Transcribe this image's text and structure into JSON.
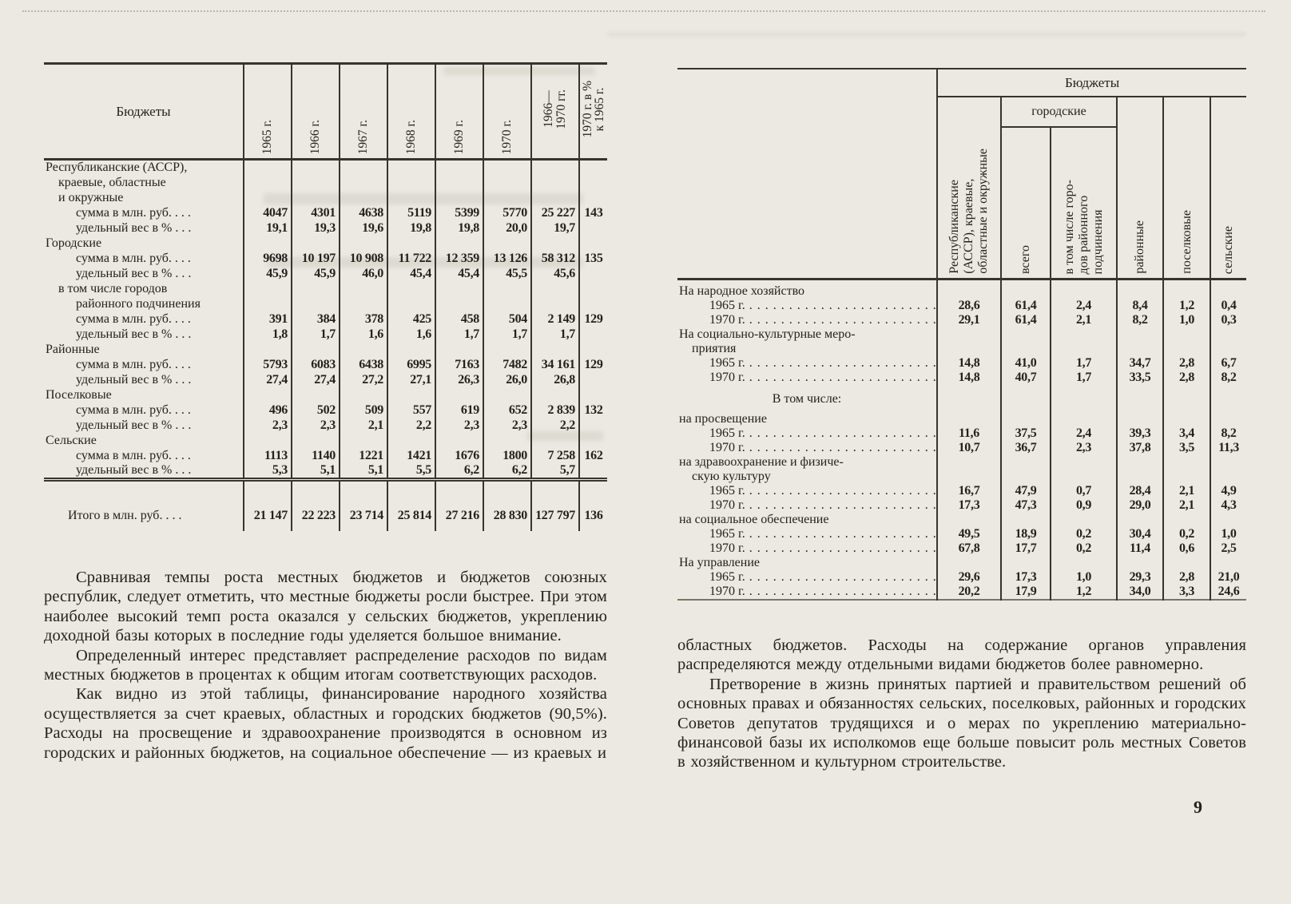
{
  "page_number": "9",
  "dot_leader": ". . . . . . . . . . . . . . . . . . . . . . . . . . . . . . . . . . . .",
  "left_table": {
    "header": {
      "stub": "Бюджеты",
      "years": [
        "1965 г.",
        "1966 г.",
        "1967 г.",
        "1968 г.",
        "1969 г.",
        "1970 г."
      ],
      "period": [
        "1966—",
        "1970 гг."
      ],
      "ratio": [
        "1970 г. в %",
        "к 1965 г."
      ]
    },
    "rows": [
      {
        "label": "Республиканские (АССР),",
        "indent": 0
      },
      {
        "label": "краевые, областные",
        "indent": 1
      },
      {
        "label": "и окружные",
        "indent": 1
      },
      {
        "label": "сумма в млн. руб. . . .",
        "indent": 2,
        "values": [
          "4047",
          "4301",
          "4638",
          "5119",
          "5399",
          "5770",
          "25 227",
          "143"
        ]
      },
      {
        "label": "удельный вес в % . . .",
        "indent": 2,
        "values": [
          "19,1",
          "19,3",
          "19,6",
          "19,8",
          "19,8",
          "20,0",
          "19,7",
          ""
        ]
      },
      {
        "label": "Городские",
        "indent": 0
      },
      {
        "label": "сумма в млн. руб. . . .",
        "indent": 2,
        "values": [
          "9698",
          "10 197",
          "10 908",
          "11 722",
          "12 359",
          "13 126",
          "58 312",
          "135"
        ]
      },
      {
        "label": "удельный вес в % . . .",
        "indent": 2,
        "values": [
          "45,9",
          "45,9",
          "46,0",
          "45,4",
          "45,4",
          "45,5",
          "45,6",
          ""
        ]
      },
      {
        "label": "в том числе городов",
        "indent": 1
      },
      {
        "label": "районного подчинения",
        "indent": 2
      },
      {
        "label": "сумма в млн. руб. . . .",
        "indent": 2,
        "values": [
          "391",
          "384",
          "378",
          "425",
          "458",
          "504",
          "2 149",
          "129"
        ]
      },
      {
        "label": "удельный вес в % . . .",
        "indent": 2,
        "values": [
          "1,8",
          "1,7",
          "1,6",
          "1,6",
          "1,7",
          "1,7",
          "1,7",
          ""
        ]
      },
      {
        "label": "Районные",
        "indent": 0
      },
      {
        "label": "сумма в млн. руб. . . .",
        "indent": 2,
        "values": [
          "5793",
          "6083",
          "6438",
          "6995",
          "7163",
          "7482",
          "34 161",
          "129"
        ]
      },
      {
        "label": "удельный вес в % . . .",
        "indent": 2,
        "values": [
          "27,4",
          "27,4",
          "27,2",
          "27,1",
          "26,3",
          "26,0",
          "26,8",
          ""
        ]
      },
      {
        "label": "Поселковые",
        "indent": 0
      },
      {
        "label": "сумма в млн. руб. . . .",
        "indent": 2,
        "values": [
          "496",
          "502",
          "509",
          "557",
          "619",
          "652",
          "2 839",
          "132"
        ]
      },
      {
        "label": "удельный вес в % . . .",
        "indent": 2,
        "values": [
          "2,3",
          "2,3",
          "2,1",
          "2,2",
          "2,3",
          "2,3",
          "2,2",
          ""
        ]
      },
      {
        "label": "Сельские",
        "indent": 0
      },
      {
        "label": "сумма в млн. руб. . . .",
        "indent": 2,
        "values": [
          "1113",
          "1140",
          "1221",
          "1421",
          "1676",
          "1800",
          "7 258",
          "162"
        ]
      },
      {
        "label": "удельный вес в % . . .",
        "indent": 2,
        "values": [
          "5,3",
          "5,1",
          "5,1",
          "5,5",
          "6,2",
          "6,2",
          "5,7",
          ""
        ]
      }
    ],
    "total": {
      "label": "Итого в млн. руб. . . .",
      "values": [
        "21 147",
        "22 223",
        "23 714",
        "25 814",
        "27 216",
        "28 830",
        "127 797",
        "136"
      ]
    }
  },
  "right_table": {
    "title": "Бюджеты",
    "city_group": "городские",
    "cols": {
      "republican": [
        "Республиканские",
        "(АССР), краевые,",
        "областные и окружные"
      ],
      "city_total": [
        "всего"
      ],
      "city_sub": [
        "в том числе горо-",
        "дов районного",
        "подчинения"
      ],
      "district": [
        "районные"
      ],
      "settlement": [
        "поселковые"
      ],
      "rural": [
        "сельские"
      ]
    },
    "rows": [
      {
        "label": "На народное хозяйство",
        "indent": 0
      },
      {
        "label": "1965 г.",
        "dots": true,
        "indent": 2,
        "values": [
          "28,6",
          "61,4",
          "2,4",
          "8,4",
          "1,2",
          "0,4"
        ]
      },
      {
        "label": "1970 г.",
        "dots": true,
        "indent": 2,
        "values": [
          "29,1",
          "61,4",
          "2,1",
          "8,2",
          "1,0",
          "0,3"
        ]
      },
      {
        "label": "На социально-культурные  меро-",
        "indent": 0
      },
      {
        "label": "приятия",
        "indent": 1
      },
      {
        "label": "1965 г.",
        "dots": true,
        "indent": 2,
        "values": [
          "14,8",
          "41,0",
          "1,7",
          "34,7",
          "2,8",
          "6,7"
        ]
      },
      {
        "label": "1970 г.",
        "dots": true,
        "indent": 2,
        "values": [
          "14,8",
          "40,7",
          "1,7",
          "33,5",
          "2,8",
          "8,2"
        ]
      },
      {
        "label": "В том числе:",
        "center": true
      },
      {
        "label": "на просвещение",
        "indent": 0
      },
      {
        "label": "1965 г.",
        "dots": true,
        "indent": 2,
        "values": [
          "11,6",
          "37,5",
          "2,4",
          "39,3",
          "3,4",
          "8,2"
        ]
      },
      {
        "label": "1970 г.",
        "dots": true,
        "indent": 2,
        "values": [
          "10,7",
          "36,7",
          "2,3",
          "37,8",
          "3,5",
          "11,3"
        ]
      },
      {
        "label": "на здравоохранение и физиче-",
        "indent": 0
      },
      {
        "label": "скую культуру",
        "indent": 1
      },
      {
        "label": "1965 г.",
        "dots": true,
        "indent": 2,
        "values": [
          "16,7",
          "47,9",
          "0,7",
          "28,4",
          "2,1",
          "4,9"
        ]
      },
      {
        "label": "1970 г.",
        "dots": true,
        "indent": 2,
        "values": [
          "17,3",
          "47,3",
          "0,9",
          "29,0",
          "2,1",
          "4,3"
        ]
      },
      {
        "label": "на социальное обеспечение",
        "indent": 0
      },
      {
        "label": "1965 г.",
        "dots": true,
        "indent": 2,
        "values": [
          "49,5",
          "18,9",
          "0,2",
          "30,4",
          "0,2",
          "1,0"
        ]
      },
      {
        "label": "1970 г.",
        "dots": true,
        "indent": 2,
        "values": [
          "67,8",
          "17,7",
          "0,2",
          "11,4",
          "0,6",
          "2,5"
        ]
      },
      {
        "label": "На управление",
        "indent": 0
      },
      {
        "label": "1965 г.",
        "dots": true,
        "indent": 2,
        "values": [
          "29,6",
          "17,3",
          "1,0",
          "29,3",
          "2,8",
          "21,0"
        ]
      },
      {
        "label": "1970 г.",
        "dots": true,
        "indent": 2,
        "values": [
          "20,2",
          "17,9",
          "1,2",
          "34,0",
          "3,3",
          "24,6"
        ]
      }
    ]
  },
  "left_column_text": [
    "Сравнивая темпы роста местных бюджетов и бюджетов союзных республик, следует отметить, что местные бюджеты росли быстрее. При этом наиболее высокий темп роста оказался у сельских бюджетов, укреплению доходной базы которых в последние годы уделяется большое внимание.",
    "Определенный интерес представляет распределение расходов по видам местных бюджетов в процентах к общим итогам соответствующих расходов.",
    "Как видно из этой таблицы, финансирование народного хозяйства осуществляется за счет краевых, областных и городских бюджетов (90,5%). Расходы на просвещение и здравоохранение производятся в основном из городских и районных бюджетов, на социальное обеспечение — из краевых и"
  ],
  "right_column_text": [
    "областных бюджетов. Расходы на содержание органов управления распределяются между отдельными видами бюджетов более равномерно.",
    "Претворение в жизнь принятых партией и правительством решений об основных правах и обязанностях сельских, поселковых, районных и городских Советов депутатов трудящихся и о мерах по укреплению материально-финансовой базы их исполкомов еще больше повысит роль местных Советов в хозяйственном и культурном строительстве."
  ]
}
